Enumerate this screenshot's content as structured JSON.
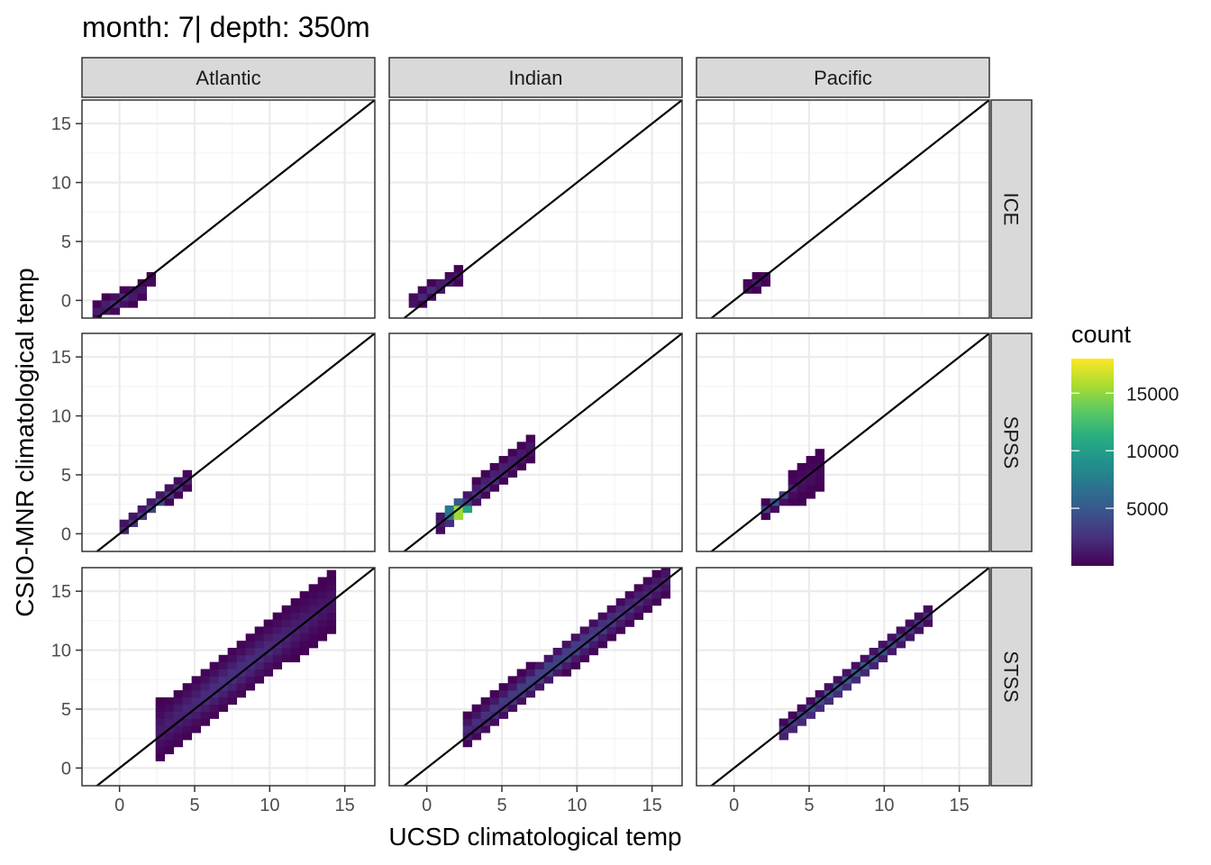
{
  "chart_data": {
    "type": "heatmap",
    "title": "month: 7| depth: 350m",
    "xlabel": "UCSD climatological temp",
    "ylabel": "CSIO-MNR climatological temp",
    "col_facets": [
      "Atlantic",
      "Indian",
      "Pacific"
    ],
    "row_facets": [
      "ICE",
      "SPSS",
      "STSS"
    ],
    "xlim": [
      -2.5,
      17
    ],
    "ylim": [
      -1.5,
      17
    ],
    "x_ticks": [
      0,
      5,
      10,
      15
    ],
    "y_ticks": [
      0,
      5,
      10,
      15
    ],
    "x_tick_labels": [
      "0",
      "5",
      "10",
      "15"
    ],
    "y_tick_labels": [
      "0",
      "5",
      "10",
      "15"
    ],
    "bin_width": 0.6,
    "reference_line": "y = x",
    "grid": true,
    "legend": {
      "title": "count",
      "position": "right",
      "min": 0,
      "max": 18000,
      "breaks": [
        5000,
        10000,
        15000
      ],
      "break_labels": [
        "5000",
        "10000",
        "15000"
      ],
      "palette": [
        "#440154",
        "#472d7b",
        "#3b528b",
        "#2c728e",
        "#21918c",
        "#28ae80",
        "#5ec962",
        "#addc30",
        "#fde725"
      ]
    },
    "panels": [
      {
        "col": "Atlantic",
        "row": "ICE",
        "regions": [
          {
            "x": [
              -1.5,
              1.5
            ],
            "y": [
              -0.9,
              0.9
            ],
            "halfwidth": 0.8,
            "peak": 2500
          },
          {
            "x": [
              0.8,
              2.2
            ],
            "y": [
              0.6,
              1.8
            ],
            "halfwidth": 0.5,
            "peak": 1500
          }
        ]
      },
      {
        "col": "Indian",
        "row": "ICE",
        "regions": [
          {
            "x": [
              -0.8,
              2.0
            ],
            "y": [
              0.0,
              2.0
            ],
            "halfwidth": 0.7,
            "peak": 2500
          }
        ]
      },
      {
        "col": "Pacific",
        "row": "ICE",
        "regions": [
          {
            "x": [
              0.6,
              2.2
            ],
            "y": [
              0.9,
              2.0
            ],
            "halfwidth": 0.6,
            "peak": 1500
          }
        ]
      },
      {
        "col": "Atlantic",
        "row": "SPSS",
        "regions": [
          {
            "x": [
              0.2,
              4.5
            ],
            "y": [
              0.4,
              4.6
            ],
            "halfwidth": 0.7,
            "peak": 4500
          }
        ]
      },
      {
        "col": "Indian",
        "row": "SPSS",
        "regions": [
          {
            "x": [
              1.0,
              7.0
            ],
            "y": [
              1.0,
              7.4
            ],
            "halfwidth": 1.0,
            "peak": 18000
          }
        ]
      },
      {
        "col": "Pacific",
        "row": "SPSS",
        "regions": [
          {
            "x": [
              1.8,
              4.0
            ],
            "y": [
              1.8,
              3.8
            ],
            "halfwidth": 0.6,
            "peak": 5000
          },
          {
            "x": [
              3.8,
              5.8
            ],
            "y": [
              3.8,
              5.4
            ],
            "halfwidth": 1.6,
            "peak": 800
          }
        ]
      },
      {
        "col": "Atlantic",
        "row": "STSS",
        "regions": [
          {
            "x": [
              2.5,
              14.0
            ],
            "y": [
              3.0,
              14.0
            ],
            "halfwidth": 2.4,
            "peak": 2500
          }
        ]
      },
      {
        "col": "Indian",
        "row": "STSS",
        "regions": [
          {
            "x": [
              2.5,
              16.0
            ],
            "y": [
              3.0,
              16.0
            ],
            "halfwidth": 1.4,
            "peak": 4000
          }
        ]
      },
      {
        "col": "Pacific",
        "row": "STSS",
        "regions": [
          {
            "x": [
              3.0,
              13.0
            ],
            "y": [
              2.8,
              13.0
            ],
            "halfwidth": 0.9,
            "peak": 5500
          }
        ]
      }
    ]
  }
}
